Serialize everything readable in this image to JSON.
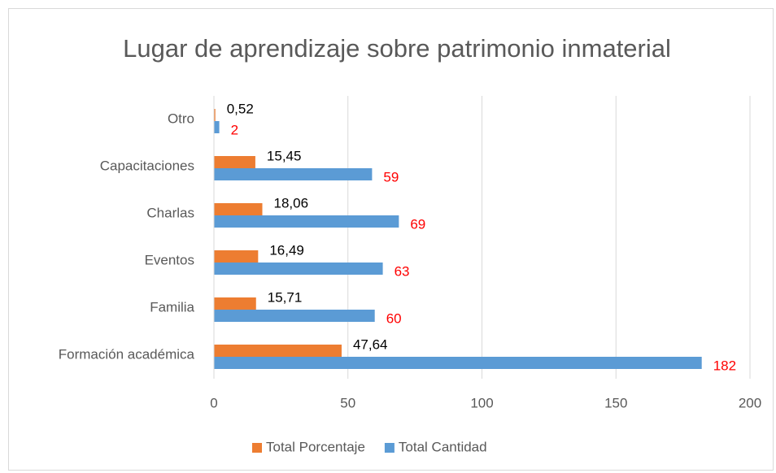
{
  "chart_data": {
    "type": "hbar",
    "title": "Lugar de aprendizaje sobre patrimonio inmaterial",
    "categories": [
      "Formación académica",
      "Familia",
      "Eventos",
      "Charlas",
      "Capacitaciones",
      "Otro"
    ],
    "series": [
      {
        "name": "Total Porcentaje",
        "color": "#ed7d31",
        "label_color": "#000000",
        "values": [
          47.64,
          15.71,
          16.49,
          18.06,
          15.45,
          0.52
        ],
        "value_labels": [
          "47,64",
          "15,71",
          "16,49",
          "18,06",
          "15,45",
          "0,52"
        ]
      },
      {
        "name": "Total Cantidad",
        "color": "#5b9bd5",
        "label_color": "#ff0000",
        "values": [
          182,
          60,
          63,
          69,
          59,
          2
        ]
      }
    ],
    "xlim": [
      0,
      200
    ],
    "xticks": [
      0,
      50,
      100,
      150,
      200
    ],
    "grid": true,
    "legend": "bottom"
  }
}
